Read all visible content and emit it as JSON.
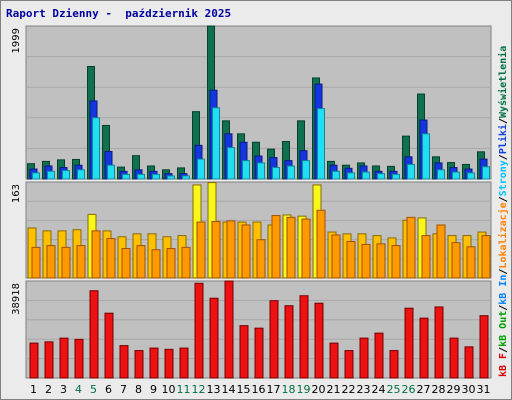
{
  "title": "Raport Dzienny -  październik 2025",
  "colors": {
    "frame_bg": "#ebebeb",
    "panel_bg": "#c0c0c0",
    "grid": "#a8a8a8",
    "weekday_label": "#000000",
    "weekend_label": "#007040",
    "wizyty": "#11714f",
    "strony": "#1535e0",
    "pliki": "#20dff2",
    "wizyty_border": "#06402c",
    "strony_border": "#0b1a80",
    "pliki_border": "#108898",
    "lokalizacje_high": "#f7f71a",
    "kb_in": "#ff9900",
    "kb_out": "#ee1111",
    "kb_f": "#dd0000"
  },
  "chart_data": [
    {
      "type": "bar",
      "panel": "top",
      "ymax_label": "1999",
      "ylim": [
        0,
        1999
      ],
      "categories": [
        "1",
        "2",
        "3",
        "4",
        "5",
        "6",
        "7",
        "8",
        "9",
        "10",
        "11",
        "12",
        "13",
        "14",
        "15",
        "16",
        "17",
        "18",
        "19",
        "20",
        "21",
        "22",
        "23",
        "24",
        "25",
        "26",
        "27",
        "28",
        "29",
        "30",
        "31"
      ],
      "weekend_days": [
        4,
        5,
        11,
        12,
        18,
        19,
        25,
        26
      ],
      "series": [
        {
          "name": "Wizyty",
          "values": [
            200,
            230,
            250,
            255,
            1470,
            700,
            155,
            305,
            170,
            120,
            145,
            880,
            1999,
            760,
            590,
            480,
            390,
            490,
            760,
            1320,
            230,
            180,
            210,
            170,
            165,
            560,
            1110,
            290,
            215,
            190,
            355
          ]
        },
        {
          "name": "Strony",
          "values": [
            130,
            170,
            150,
            180,
            1020,
            360,
            100,
            120,
            100,
            70,
            70,
            440,
            1160,
            590,
            480,
            300,
            280,
            240,
            370,
            1240,
            180,
            140,
            170,
            100,
            100,
            290,
            770,
            210,
            150,
            130,
            260
          ]
        },
        {
          "name": "Pliki",
          "values": [
            80,
            100,
            110,
            120,
            800,
            180,
            60,
            60,
            60,
            40,
            40,
            260,
            930,
            410,
            240,
            210,
            150,
            170,
            240,
            920,
            100,
            80,
            90,
            70,
            60,
            190,
            590,
            120,
            90,
            80,
            160
          ]
        }
      ]
    },
    {
      "type": "bar",
      "panel": "middle",
      "ymax_label": "163",
      "ylim": [
        0,
        163
      ],
      "categories": [
        "1",
        "2",
        "3",
        "4",
        "5",
        "6",
        "7",
        "8",
        "9",
        "10",
        "11",
        "12",
        "13",
        "14",
        "15",
        "16",
        "17",
        "18",
        "19",
        "20",
        "21",
        "22",
        "23",
        "24",
        "25",
        "26",
        "27",
        "28",
        "29",
        "30",
        "31"
      ],
      "series": [
        {
          "name": "Lokalizacje",
          "values": [
            85,
            80,
            80,
            82,
            108,
            80,
            70,
            75,
            75,
            70,
            72,
            158,
            162,
            95,
            95,
            95,
            90,
            107,
            105,
            158,
            78,
            75,
            75,
            72,
            68,
            98,
            102,
            75,
            72,
            72,
            78
          ]
        },
        {
          "name": "kB In",
          "values": [
            52,
            55,
            52,
            55,
            80,
            67,
            50,
            55,
            48,
            50,
            52,
            95,
            96,
            97,
            90,
            65,
            106,
            103,
            100,
            115,
            73,
            62,
            57,
            58,
            55,
            103,
            72,
            90,
            60,
            53,
            72
          ]
        }
      ]
    },
    {
      "type": "bar",
      "panel": "bottom",
      "ymax_label": "38918",
      "ylim": [
        0,
        38918
      ],
      "categories": [
        "1",
        "2",
        "3",
        "4",
        "5",
        "6",
        "7",
        "8",
        "9",
        "10",
        "11",
        "12",
        "13",
        "14",
        "15",
        "16",
        "17",
        "18",
        "19",
        "20",
        "21",
        "22",
        "23",
        "24",
        "25",
        "26",
        "27",
        "28",
        "29",
        "30",
        "31"
      ],
      "series": [
        {
          "name": "kB Out",
          "values": [
            14000,
            14500,
            16000,
            15500,
            35000,
            26000,
            13000,
            11000,
            12000,
            11500,
            12000,
            38000,
            32000,
            38918,
            21000,
            20000,
            31000,
            29000,
            33000,
            30000,
            14000,
            11000,
            16000,
            18000,
            11000,
            28000,
            24000,
            28500,
            16000,
            12500,
            25000
          ]
        }
      ]
    }
  ],
  "side_legend": [
    {
      "text": "kB F",
      "color": "#dd0000"
    },
    {
      "text": "/",
      "color": "#000000"
    },
    {
      "text": "kB Out",
      "color": "#00a000"
    },
    {
      "text": "/",
      "color": "#000000"
    },
    {
      "text": "kB In",
      "color": "#0080ff"
    },
    {
      "text": "/",
      "color": "#000000"
    },
    {
      "text": "Lokalizacje",
      "color": "#ff8000"
    },
    {
      "text": "/",
      "color": "#000000"
    },
    {
      "text": "Strony",
      "color": "#00c0ff"
    },
    {
      "text": "/",
      "color": "#000000"
    },
    {
      "text": "Pliki",
      "color": "#1040e0"
    },
    {
      "text": "/",
      "color": "#000000"
    },
    {
      "text": "Wyświetlenia",
      "color": "#007040"
    }
  ]
}
